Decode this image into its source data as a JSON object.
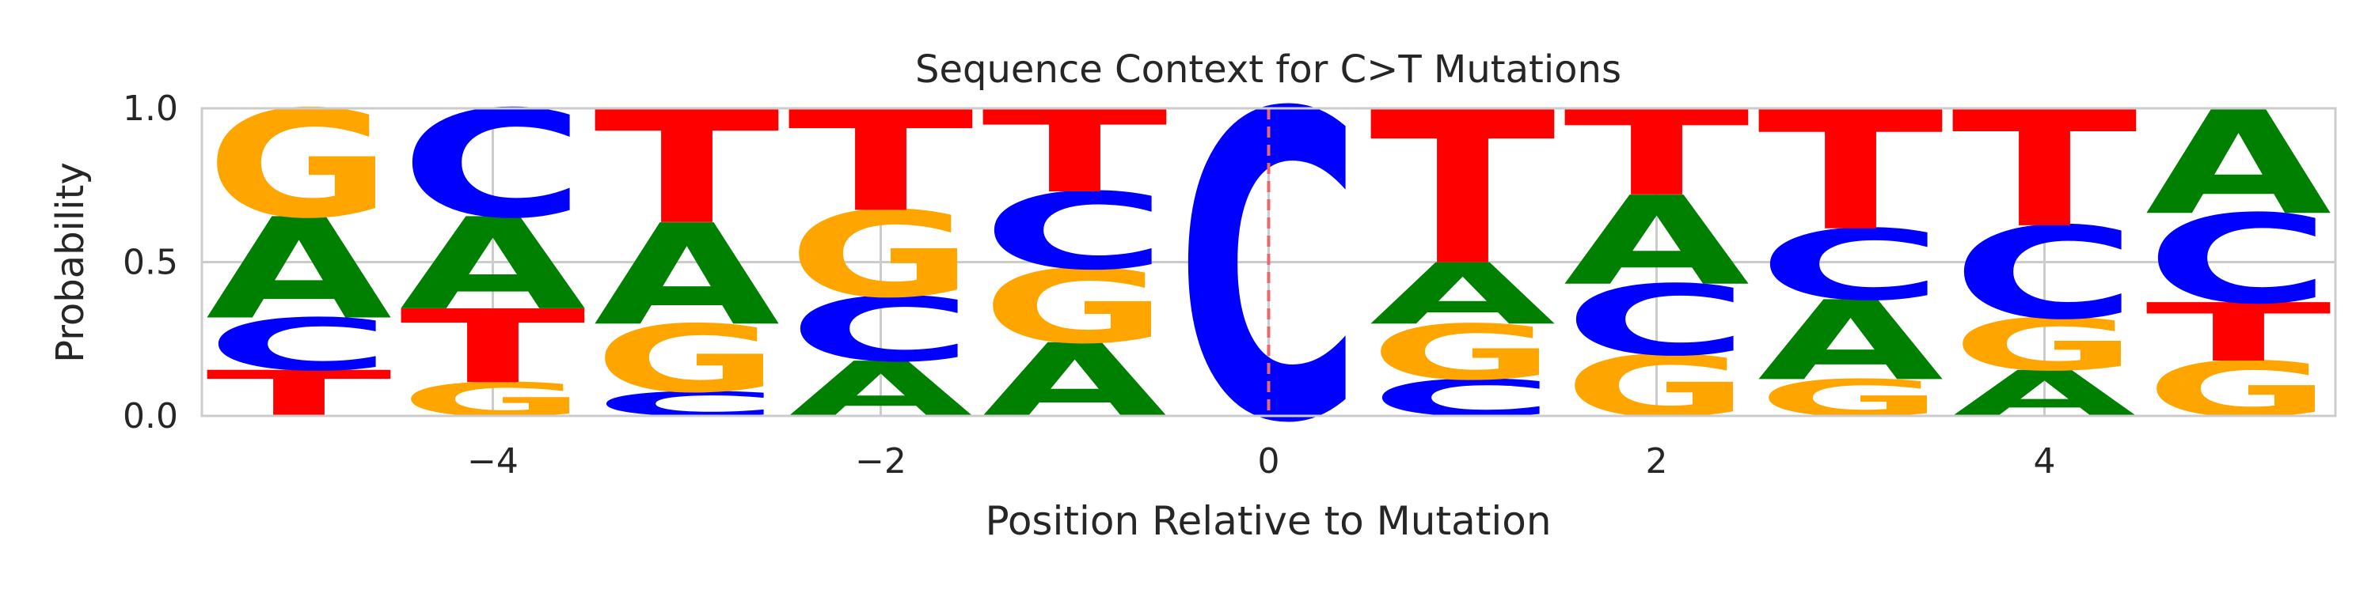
{
  "chart_data": {
    "type": "sequence-logo",
    "title": "Sequence Context for C>T Mutations",
    "xlabel": "Position Relative to Mutation",
    "ylabel": "Probability",
    "xlim": [
      -5.5,
      5.5
    ],
    "ylim": [
      0,
      1
    ],
    "x_ticks": [
      -4,
      -2,
      0,
      2,
      4
    ],
    "x_tick_labels": [
      "−4",
      "−2",
      "0",
      "2",
      "4"
    ],
    "y_ticks": [
      0,
      0.5,
      1
    ],
    "y_tick_labels": [
      "0.0",
      "0.5",
      "1.0"
    ],
    "grid": true,
    "mutation_marker": {
      "x": 0,
      "color": "#e8696b",
      "style": "dashed"
    },
    "colors": {
      "A": "#008000",
      "C": "#0000ff",
      "G": "#ffa500",
      "T": "#ff0000"
    },
    "positions": [
      {
        "x": -5,
        "stack": [
          {
            "base": "T",
            "p": 0.15
          },
          {
            "base": "C",
            "p": 0.17
          },
          {
            "base": "A",
            "p": 0.33
          },
          {
            "base": "G",
            "p": 0.35
          }
        ]
      },
      {
        "x": -4,
        "stack": [
          {
            "base": "G",
            "p": 0.11
          },
          {
            "base": "T",
            "p": 0.24
          },
          {
            "base": "A",
            "p": 0.3
          },
          {
            "base": "C",
            "p": 0.35
          }
        ]
      },
      {
        "x": -3,
        "stack": [
          {
            "base": "C",
            "p": 0.08
          },
          {
            "base": "G",
            "p": 0.22
          },
          {
            "base": "A",
            "p": 0.33
          },
          {
            "base": "T",
            "p": 0.37
          }
        ]
      },
      {
        "x": -2,
        "stack": [
          {
            "base": "A",
            "p": 0.18
          },
          {
            "base": "C",
            "p": 0.21
          },
          {
            "base": "G",
            "p": 0.28
          },
          {
            "base": "T",
            "p": 0.33
          }
        ]
      },
      {
        "x": -1,
        "stack": [
          {
            "base": "A",
            "p": 0.24
          },
          {
            "base": "G",
            "p": 0.24
          },
          {
            "base": "C",
            "p": 0.25
          },
          {
            "base": "T",
            "p": 0.27
          }
        ]
      },
      {
        "x": 0,
        "stack": [
          {
            "base": "C",
            "p": 1.0
          }
        ]
      },
      {
        "x": 1,
        "stack": [
          {
            "base": "C",
            "p": 0.12
          },
          {
            "base": "G",
            "p": 0.18
          },
          {
            "base": "A",
            "p": 0.2
          },
          {
            "base": "T",
            "p": 0.5
          }
        ]
      },
      {
        "x": 2,
        "stack": [
          {
            "base": "G",
            "p": 0.2
          },
          {
            "base": "C",
            "p": 0.23
          },
          {
            "base": "A",
            "p": 0.29
          },
          {
            "base": "T",
            "p": 0.28
          }
        ]
      },
      {
        "x": 3,
        "stack": [
          {
            "base": "G",
            "p": 0.12
          },
          {
            "base": "A",
            "p": 0.26
          },
          {
            "base": "C",
            "p": 0.23
          },
          {
            "base": "T",
            "p": 0.39
          }
        ]
      },
      {
        "x": 4,
        "stack": [
          {
            "base": "A",
            "p": 0.15
          },
          {
            "base": "G",
            "p": 0.17
          },
          {
            "base": "C",
            "p": 0.3
          },
          {
            "base": "T",
            "p": 0.38
          }
        ]
      },
      {
        "x": 5,
        "stack": [
          {
            "base": "G",
            "p": 0.18
          },
          {
            "base": "T",
            "p": 0.19
          },
          {
            "base": "C",
            "p": 0.29
          },
          {
            "base": "A",
            "p": 0.34
          }
        ]
      }
    ]
  }
}
